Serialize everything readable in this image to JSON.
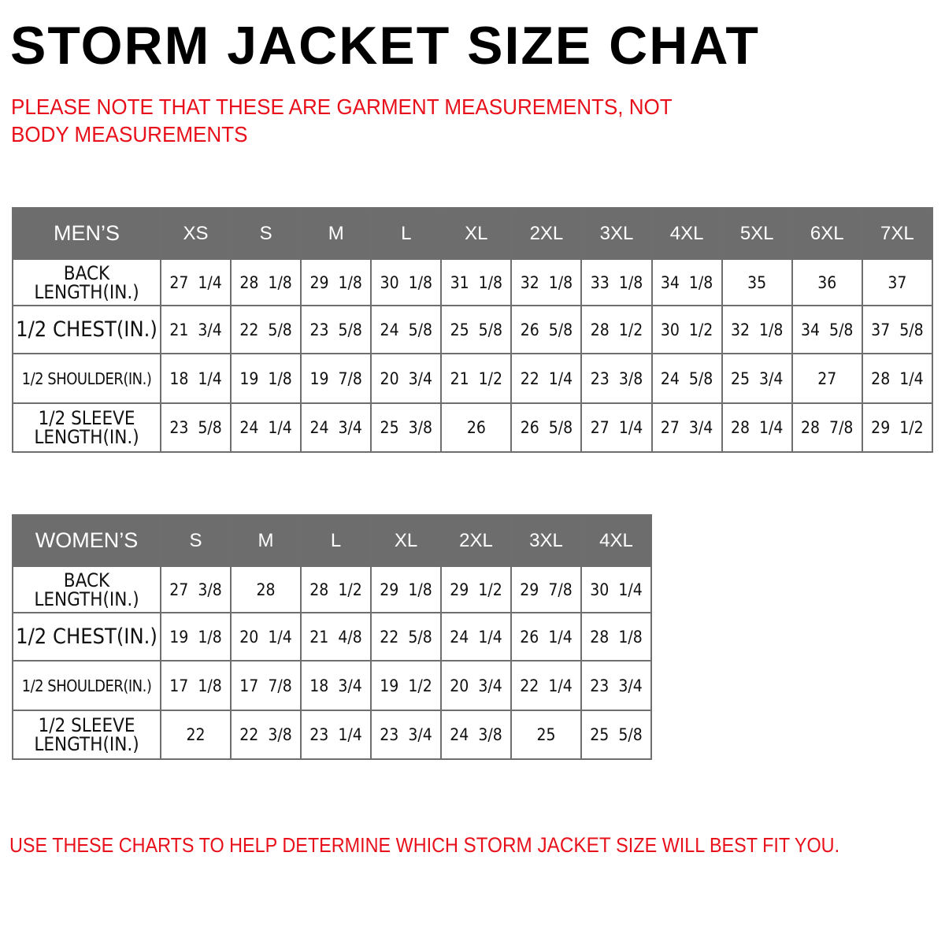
{
  "title": "STORM JACKET SIZE CHAT",
  "note": "PLEASE NOTE THAT THESE ARE GARMENT MEASUREMENTS, NOT BODY MEASUREMENTS",
  "mens": {
    "header": "MEN’S",
    "sizes": [
      "XS",
      "S",
      "M",
      "L",
      "XL",
      "2XL",
      "3XL",
      "4XL",
      "5XL",
      "6XL",
      "7XL"
    ],
    "rows": [
      {
        "label": "BACK LENGTH(IN.)",
        "values": [
          "27  1/4",
          "28  1/8",
          "29  1/8",
          "30  1/8",
          "31  1/8",
          "32  1/8",
          "33  1/8",
          "34  1/8",
          "35",
          "36",
          "37"
        ]
      },
      {
        "label": "1/2  CHEST(IN.)",
        "values": [
          "21  3/4",
          "22  5/8",
          "23  5/8",
          "24  5/8",
          "25  5/8",
          "26  5/8",
          "28  1/2",
          "30  1/2",
          "32  1/8",
          "34  5/8",
          "37  5/8"
        ]
      },
      {
        "label": "1/2  SHOULDER(IN.)",
        "values": [
          "18  1/4",
          "19  1/8",
          "19  7/8",
          "20  3/4",
          "21  1/2",
          "22  1/4",
          "23  3/8",
          "24  5/8",
          "25  3/4",
          "27",
          "28  1/4"
        ]
      },
      {
        "label": "1/2  SLEEVE LENGTH(IN.)",
        "values": [
          "23  5/8",
          "24  1/4",
          "24  3/4",
          "25  3/8",
          "26",
          "26  5/8",
          "27  1/4",
          "27  3/4",
          "28  1/4",
          "28  7/8",
          "29  1/2"
        ]
      }
    ]
  },
  "womens": {
    "header": "WOMEN’S",
    "sizes": [
      "S",
      "M",
      "L",
      "XL",
      "2XL",
      "3XL",
      "4XL"
    ],
    "rows": [
      {
        "label": "BACK LENGTH(IN.)",
        "values": [
          "27  3/8",
          "28",
          "28  1/2",
          "29  1/8",
          "29  1/2",
          "29  7/8",
          "30  1/4"
        ]
      },
      {
        "label": "1/2  CHEST(IN.)",
        "values": [
          "19  1/8",
          "20  1/4",
          "21  4/8",
          "22  5/8",
          "24  1/4",
          "26  1/4",
          "28  1/8"
        ]
      },
      {
        "label": "1/2  SHOULDER(IN.)",
        "values": [
          "17  1/8",
          "17  7/8",
          "18  3/4",
          "19  1/2",
          "20  3/4",
          "22  1/4",
          "23  3/4"
        ]
      },
      {
        "label": "1/2  SLEEVE LENGTH(IN.)",
        "values": [
          "22",
          "22  3/8",
          "23  1/4",
          "23  3/4",
          "24  3/8",
          "25",
          "25  5/8"
        ]
      }
    ]
  },
  "footer": {
    "before": "USE THESE CHARTS TO HELP DETERMINE WHICH ",
    "brand": "STORM JACKET",
    "after": "  SIZE WILL BEST FIT YOU."
  },
  "colors": {
    "header_bg": "#6d6d6d",
    "accent_red": "#e8101a"
  }
}
